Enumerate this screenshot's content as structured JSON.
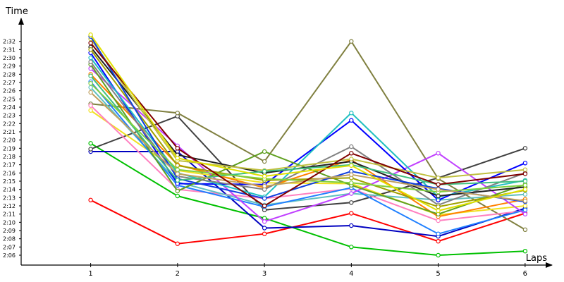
{
  "chart_data": {
    "type": "line",
    "title": "",
    "xlabel": "Laps",
    "ylabel": "Time",
    "x": [
      1,
      2,
      3,
      4,
      5,
      6
    ],
    "xticks": [
      "1",
      "2",
      "3",
      "4",
      "5",
      "6"
    ],
    "yticks": [
      "2:06",
      "2:07",
      "2:08",
      "2:09",
      "2:10",
      "2:11",
      "2:12",
      "2:13",
      "2:14",
      "2:15",
      "2:16",
      "2:17",
      "2:18",
      "2:19",
      "2:20",
      "2:21",
      "2:22",
      "2:23",
      "2:24",
      "2:25",
      "2:26",
      "2:27",
      "2:28",
      "2:29",
      "2:30",
      "2:31",
      "2:32"
    ],
    "ylim_seconds": [
      124.8,
      156
    ],
    "ylim_display": [
      "2:04.8",
      "2:36"
    ],
    "grid": false,
    "legend": "none",
    "y_unit": "seconds",
    "series": [
      {
        "color": "#ff0000",
        "values": [
          132.7,
          127.4,
          128.6,
          131.1,
          127.7,
          131.1
        ]
      },
      {
        "color": "#00c000",
        "values": [
          139.6,
          133.2,
          130.5,
          127.0,
          126.0,
          126.5
        ]
      },
      {
        "color": "#0000c0",
        "values": [
          138.6,
          138.6,
          129.3,
          129.6,
          128.3,
          131.7
        ]
      },
      {
        "color": "#404040",
        "values": [
          138.9,
          142.9,
          131.5,
          132.4,
          135.4,
          139.0
        ]
      },
      {
        "color": "#808040",
        "values": [
          144.4,
          143.3,
          137.4,
          152.0,
          135.3,
          129.1
        ]
      },
      {
        "color": "#f0e020",
        "values": [
          143.6,
          136.3,
          134.8,
          134.7,
          130.9,
          132.0
        ]
      },
      {
        "color": "#ff80c0",
        "values": [
          144.2,
          134.0,
          132.9,
          134.1,
          130.2,
          131.4
        ]
      },
      {
        "color": "#60c0c0",
        "values": [
          146.4,
          134.9,
          132.1,
          133.5,
          132.7,
          133.4
        ]
      },
      {
        "color": "#2080ff",
        "values": [
          147.1,
          134.5,
          131.9,
          134.2,
          128.6,
          131.5
        ]
      },
      {
        "color": "#ff8000",
        "values": [
          148.0,
          137.0,
          134.2,
          137.6,
          130.7,
          132.8
        ]
      },
      {
        "color": "#c040ff",
        "values": [
          148.7,
          139.3,
          130.1,
          133.5,
          138.4,
          131.0
        ]
      },
      {
        "color": "#0000ff",
        "values": [
          150.6,
          134.7,
          134.6,
          142.4,
          132.7,
          137.2
        ]
      },
      {
        "color": "#20c0c0",
        "values": [
          150.0,
          136.0,
          133.1,
          143.3,
          133.1,
          135.1
        ]
      },
      {
        "color": "#60a020",
        "values": [
          149.2,
          133.8,
          138.6,
          134.5,
          131.0,
          134.6
        ]
      },
      {
        "color": "#808080",
        "values": [
          149.5,
          135.6,
          134.0,
          139.2,
          132.1,
          136.0
        ]
      },
      {
        "color": "#202020",
        "values": [
          151.3,
          138.2,
          136.0,
          137.4,
          133.2,
          134.3
        ]
      },
      {
        "color": "#c0c040",
        "values": [
          152.3,
          137.5,
          136.3,
          137.7,
          135.4,
          136.4
        ]
      },
      {
        "color": "#a0a000",
        "values": [
          151.0,
          136.9,
          135.1,
          135.4,
          131.9,
          133.9
        ]
      },
      {
        "color": "#1040e0",
        "values": [
          152.6,
          135.3,
          132.9,
          136.2,
          134.1,
          132.5
        ]
      },
      {
        "color": "#40c080",
        "values": [
          147.8,
          135.1,
          136.2,
          137.0,
          134.6,
          135.0
        ]
      },
      {
        "color": "#80d040",
        "values": [
          146.9,
          136.4,
          135.3,
          134.8,
          133.7,
          134.5
        ]
      },
      {
        "color": "#c0a060",
        "values": [
          145.8,
          135.9,
          134.4,
          135.8,
          134.0,
          132.6
        ]
      },
      {
        "color": "#800000",
        "values": [
          151.8,
          139.0,
          132.0,
          138.4,
          134.6,
          135.9
        ]
      },
      {
        "color": "#e0e000",
        "values": [
          152.8,
          137.8,
          135.6,
          136.9,
          131.4,
          134.0
        ]
      }
    ]
  }
}
